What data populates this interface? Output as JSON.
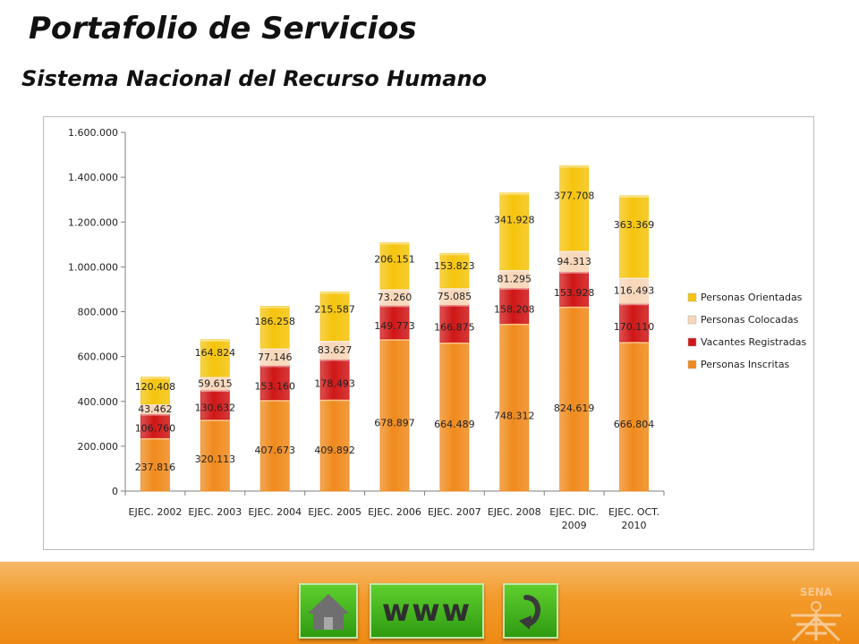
{
  "slide": {
    "title": "Portafolio de Servicios",
    "subtitle": "Sistema Nacional del Recurso Humano"
  },
  "nav": {
    "home_icon": "home-icon",
    "www_label": "www",
    "back_icon": "return-arrow-icon",
    "accent_color": "#3aa817"
  },
  "logo": {
    "text": "SENA"
  },
  "chart_data": {
    "type": "bar",
    "stacked": true,
    "categories": [
      [
        "EJEC. 2002"
      ],
      [
        "EJEC. 2003"
      ],
      [
        "EJEC. 2004"
      ],
      [
        "EJEC. 2005"
      ],
      [
        "EJEC. 2006"
      ],
      [
        "EJEC. 2007"
      ],
      [
        "EJEC. 2008"
      ],
      [
        "EJEC. DIC.",
        "2009"
      ],
      [
        "EJEC. OCT.",
        "2010"
      ]
    ],
    "series": [
      {
        "name": "Personas Inscritas",
        "color": "#f08a1c",
        "values": [
          237816,
          320113,
          407673,
          409892,
          678897,
          664489,
          748312,
          824619,
          666804
        ],
        "labels": [
          "237.816",
          "320.113",
          "407.673",
          "409.892",
          "678.897",
          "664.489",
          "748.312",
          "824.619",
          "666.804"
        ]
      },
      {
        "name": "Vacantes Registradas",
        "color": "#d01616",
        "values": [
          106760,
          130632,
          153160,
          178493,
          149773,
          166875,
          158208,
          153928,
          170110
        ],
        "labels": [
          "106.760",
          "130.632",
          "153.160",
          "178.493",
          "149.773",
          "166.875",
          "158.208",
          "153.928",
          "170.110"
        ]
      },
      {
        "name": "Personas Colocadas",
        "color": "#f8d6b8",
        "values": [
          43462,
          59615,
          77146,
          83627,
          73260,
          75085,
          81295,
          94313,
          116493
        ],
        "labels": [
          "43.462",
          "59.615",
          "77.146",
          "83.627",
          "73.260",
          "75.085",
          "81.295",
          "94.313",
          "116.493"
        ]
      },
      {
        "name": "Personas Orientadas",
        "color": "#f5c40c",
        "values": [
          120408,
          164824,
          186258,
          215587,
          206151,
          153823,
          341928,
          377708,
          363369
        ],
        "labels": [
          "120.408",
          "164.824",
          "186.258",
          "215.587",
          "206.151",
          "153.823",
          "341.928",
          "377.708",
          "363.369"
        ]
      }
    ],
    "legend_order": [
      "Personas Orientadas",
      "Personas Colocadas",
      "Vacantes Registradas",
      "Personas Inscritas"
    ],
    "ylim": [
      0,
      1600000
    ],
    "yticks": [
      0,
      200000,
      400000,
      600000,
      800000,
      1000000,
      1200000,
      1400000,
      1600000
    ],
    "ytick_labels": [
      "0",
      "200.000",
      "400.000",
      "600.000",
      "800.000",
      "1.000.000",
      "1.200.000",
      "1.400.000",
      "1.600.000"
    ],
    "grid": false,
    "legend_position": "right"
  }
}
